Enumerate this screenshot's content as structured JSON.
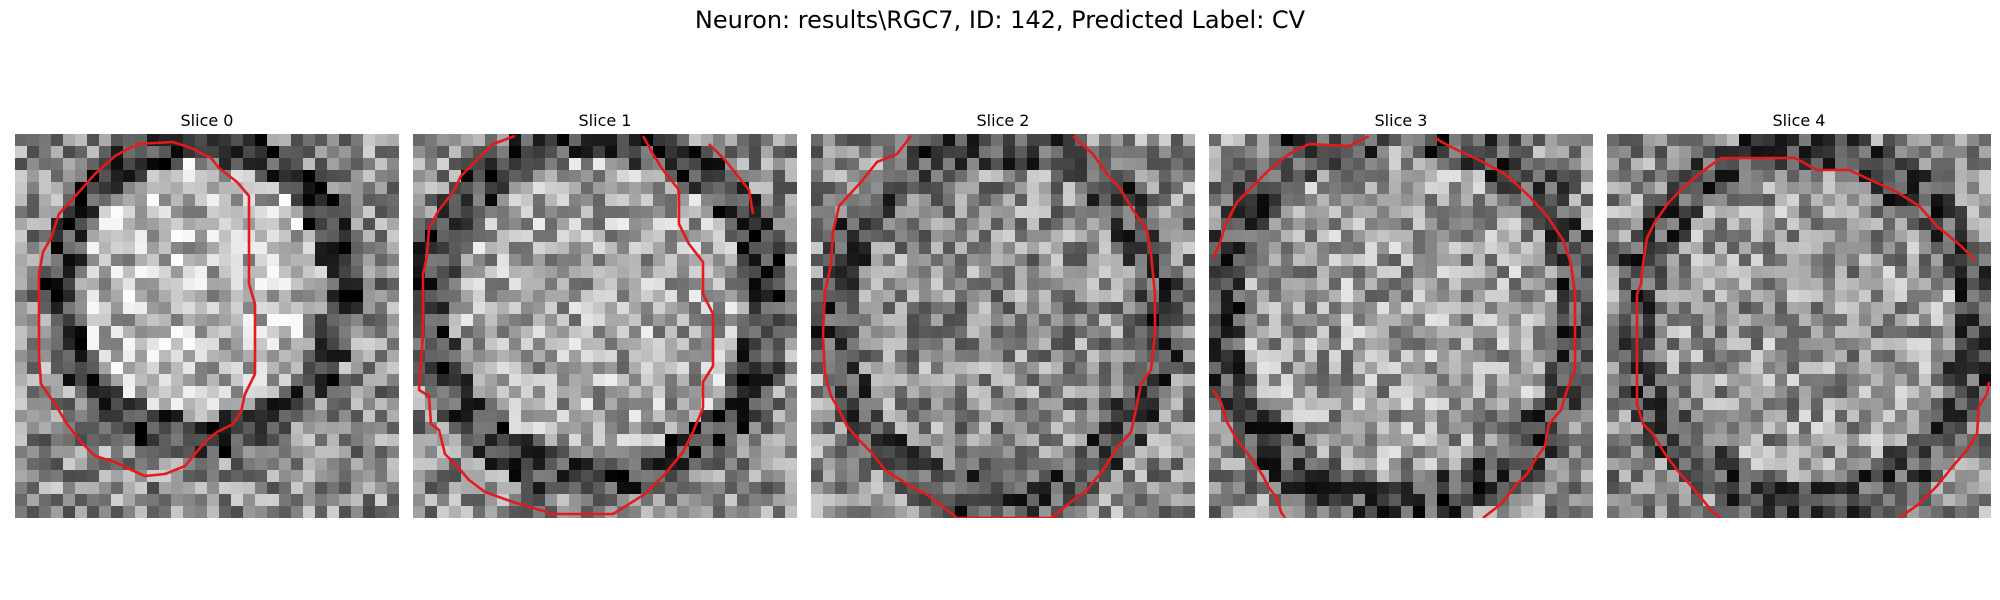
{
  "figure": {
    "title": "Neuron: results\\RGC7, ID: 142, Predicted Label: CV"
  },
  "panels": [
    {
      "title": "Slice 0"
    },
    {
      "title": "Slice 1"
    },
    {
      "title": "Slice 2"
    },
    {
      "title": "Slice 3"
    },
    {
      "title": "Slice 4"
    }
  ],
  "colors": {
    "contour": "#e41a1c",
    "background": "#ffffff"
  }
}
